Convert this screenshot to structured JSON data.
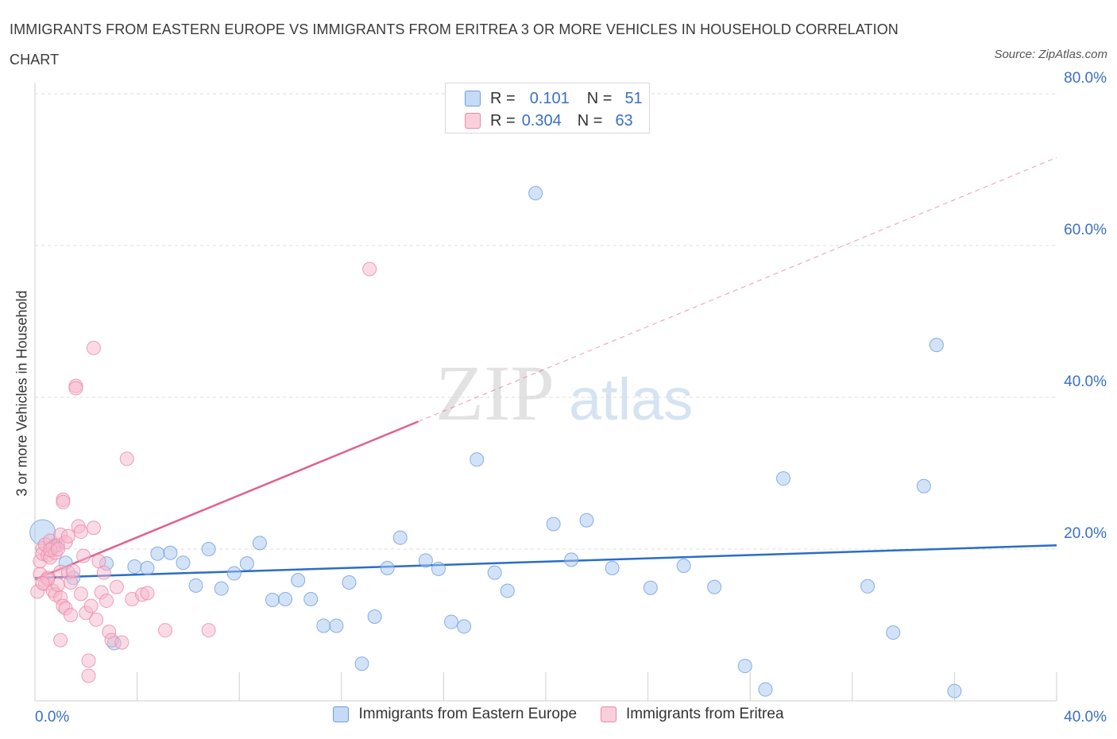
{
  "header": {
    "title": "IMMIGRANTS FROM EASTERN EUROPE VS IMMIGRANTS FROM ERITREA 3 OR MORE VEHICLES IN HOUSEHOLD CORRELATION CHART",
    "source": "Source: ZipAtlas.com"
  },
  "watermark": {
    "zip": "ZIP",
    "atlas": "atlas"
  },
  "stats_legend": {
    "rows": [
      {
        "r_label": "R =",
        "r_value": "0.101",
        "n_label": "N =",
        "n_value": "51",
        "color": "#a8c8f0"
      },
      {
        "r_label": "R =",
        "r_value": "0.304",
        "n_label": "N =",
        "n_value": "63",
        "color": "#f5b8cb"
      }
    ]
  },
  "series_legend": [
    {
      "label": "Immigrants from Eastern Europe",
      "color": "#a8c8f0"
    },
    {
      "label": "Immigrants from Eritrea",
      "color": "#f5b8cb"
    }
  ],
  "chart_data": {
    "type": "scatter",
    "title": "IMMIGRANTS FROM EASTERN EUROPE VS IMMIGRANTS FROM ERITREA 3 OR MORE VEHICLES IN HOUSEHOLD CORRELATION CHART",
    "xlabel": "",
    "ylabel": "3 or more Vehicles in Household",
    "xlim": [
      0,
      40
    ],
    "ylim": [
      0,
      80
    ],
    "x_tick_labels": [
      "0.0%",
      "40.0%"
    ],
    "y_tick_labels": [
      "20.0%",
      "40.0%",
      "60.0%",
      "80.0%"
    ],
    "y_ticks": [
      20,
      40,
      60,
      80
    ],
    "grid": true,
    "series": [
      {
        "name": "Immigrants from Eastern Europe",
        "color": "#a8c8f0",
        "stroke": "#6d9ce0",
        "trend_color": "#2a6dc9",
        "trend": {
          "x": [
            0,
            40
          ],
          "y": [
            16.2,
            20.5
          ]
        },
        "points": [
          [
            0.3,
            22.2
          ],
          [
            1.2,
            18.2
          ],
          [
            1.5,
            16.2
          ],
          [
            2.8,
            18.1
          ],
          [
            3.1,
            7.6
          ],
          [
            3.9,
            17.7
          ],
          [
            4.4,
            17.5
          ],
          [
            4.8,
            19.4
          ],
          [
            5.3,
            19.5
          ],
          [
            5.8,
            18.2
          ],
          [
            6.3,
            15.2
          ],
          [
            6.8,
            20.0
          ],
          [
            7.3,
            14.8
          ],
          [
            7.8,
            16.8
          ],
          [
            8.3,
            18.1
          ],
          [
            8.8,
            20.8
          ],
          [
            9.3,
            13.3
          ],
          [
            9.8,
            13.4
          ],
          [
            10.3,
            15.9
          ],
          [
            10.8,
            13.4
          ],
          [
            11.3,
            9.9
          ],
          [
            11.8,
            9.9
          ],
          [
            12.3,
            15.6
          ],
          [
            12.8,
            4.9
          ],
          [
            13.3,
            11.1
          ],
          [
            13.8,
            17.5
          ],
          [
            14.3,
            21.5
          ],
          [
            15.3,
            18.5
          ],
          [
            15.8,
            17.4
          ],
          [
            16.3,
            10.4
          ],
          [
            16.8,
            9.8
          ],
          [
            17.3,
            31.8
          ],
          [
            18.0,
            16.9
          ],
          [
            18.5,
            14.5
          ],
          [
            19.6,
            66.9
          ],
          [
            20.3,
            23.3
          ],
          [
            21.0,
            18.6
          ],
          [
            21.6,
            23.8
          ],
          [
            22.6,
            17.5
          ],
          [
            25.4,
            17.8
          ],
          [
            26.6,
            15.0
          ],
          [
            27.8,
            4.6
          ],
          [
            28.6,
            1.5
          ],
          [
            29.3,
            29.3
          ],
          [
            32.6,
            15.1
          ],
          [
            33.6,
            9.0
          ],
          [
            34.8,
            28.3
          ],
          [
            35.3,
            46.9
          ],
          [
            36.0,
            1.3
          ],
          [
            0.8,
            20.5
          ],
          [
            24.1,
            14.9
          ]
        ]
      },
      {
        "name": "Immigrants from Eritrea",
        "color": "#f5b8cb",
        "stroke": "#e98aa8",
        "trend_color": "#e0628b",
        "trend": {
          "x": [
            0,
            15
          ],
          "y": [
            16.0,
            36.8
          ]
        },
        "trend_extension": {
          "x": [
            15,
            40
          ],
          "y": [
            36.8,
            71.6
          ]
        },
        "points": [
          [
            0.1,
            14.4
          ],
          [
            0.2,
            16.7
          ],
          [
            0.2,
            18.4
          ],
          [
            0.3,
            20.1
          ],
          [
            0.3,
            19.4
          ],
          [
            0.4,
            15.4
          ],
          [
            0.4,
            20.6
          ],
          [
            0.5,
            16.2
          ],
          [
            0.5,
            19.2
          ],
          [
            0.6,
            18.9
          ],
          [
            0.6,
            21.1
          ],
          [
            0.7,
            14.5
          ],
          [
            0.7,
            20.2
          ],
          [
            0.8,
            14.0
          ],
          [
            0.8,
            19.5
          ],
          [
            0.9,
            15.3
          ],
          [
            0.9,
            20.5
          ],
          [
            1.0,
            13.6
          ],
          [
            1.0,
            21.9
          ],
          [
            1.0,
            17.0
          ],
          [
            1.1,
            12.5
          ],
          [
            1.1,
            26.5
          ],
          [
            1.1,
            26.2
          ],
          [
            1.2,
            12.2
          ],
          [
            1.2,
            20.9
          ],
          [
            1.3,
            16.9
          ],
          [
            1.3,
            21.7
          ],
          [
            1.4,
            15.6
          ],
          [
            1.4,
            11.3
          ],
          [
            1.5,
            17.1
          ],
          [
            1.6,
            41.5
          ],
          [
            1.6,
            41.2
          ],
          [
            1.7,
            23.0
          ],
          [
            1.8,
            14.1
          ],
          [
            1.8,
            22.3
          ],
          [
            1.9,
            19.1
          ],
          [
            2.0,
            11.6
          ],
          [
            2.1,
            5.3
          ],
          [
            2.1,
            3.3
          ],
          [
            2.2,
            12.5
          ],
          [
            2.3,
            46.5
          ],
          [
            2.3,
            22.8
          ],
          [
            2.4,
            10.7
          ],
          [
            2.5,
            18.4
          ],
          [
            2.6,
            14.3
          ],
          [
            2.7,
            16.9
          ],
          [
            2.8,
            13.2
          ],
          [
            2.9,
            9.1
          ],
          [
            3.0,
            8.0
          ],
          [
            3.2,
            15.0
          ],
          [
            3.4,
            7.7
          ],
          [
            3.6,
            31.9
          ],
          [
            3.8,
            13.4
          ],
          [
            4.2,
            14.0
          ],
          [
            4.4,
            14.2
          ],
          [
            5.1,
            9.3
          ],
          [
            6.8,
            9.3
          ],
          [
            13.1,
            56.9
          ],
          [
            0.5,
            16.0
          ],
          [
            1.0,
            8.0
          ],
          [
            0.6,
            19.9
          ],
          [
            0.9,
            20.0
          ],
          [
            0.3,
            15.5
          ]
        ]
      }
    ]
  }
}
